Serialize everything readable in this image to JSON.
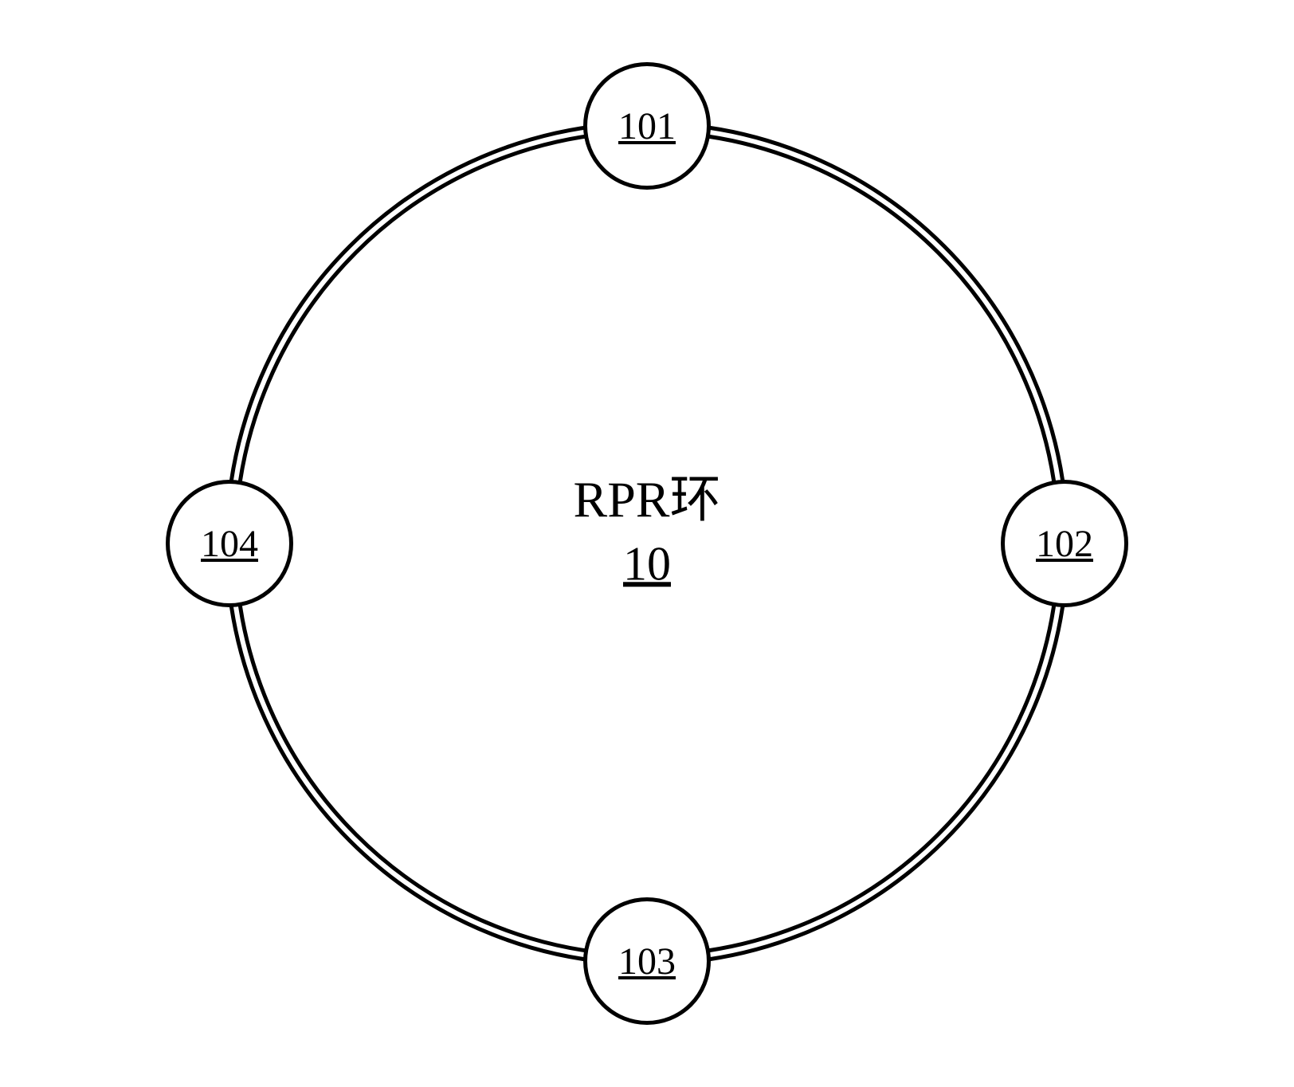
{
  "diagram": {
    "center_title": "RPR环",
    "center_id": "10",
    "ring": {
      "outer_diameter": 1060,
      "inner_diameter": 1038,
      "stroke_width": 5,
      "stroke_color": "#000000"
    },
    "center_label": {
      "title_fontsize": 64,
      "id_fontsize": 60,
      "color": "#000000"
    },
    "nodes": [
      {
        "id": "101",
        "angle_deg": -90
      },
      {
        "id": "102",
        "angle_deg": 0
      },
      {
        "id": "103",
        "angle_deg": 90
      },
      {
        "id": "104",
        "angle_deg": 180
      }
    ],
    "node_style": {
      "diameter": 160,
      "stroke_width": 5,
      "stroke_color": "#000000",
      "fill": "#ffffff",
      "label_fontsize": 48,
      "label_color": "#000000"
    },
    "orbit_radius": 524
  }
}
